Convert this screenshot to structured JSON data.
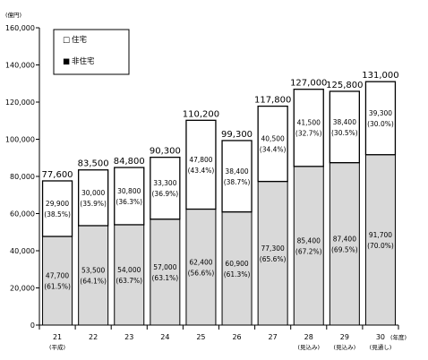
{
  "chart_data": {
    "type": "bar",
    "stacked": true,
    "unit_label": "(億円)",
    "x_unit_label": "(年度)",
    "legend": [
      {
        "name": "住宅",
        "marker": "□",
        "fill": "#ffffff"
      },
      {
        "name": "非住宅",
        "marker": "■",
        "fill": "#d9d9d9"
      }
    ],
    "categories": [
      "21",
      "22",
      "23",
      "24",
      "25",
      "26",
      "27",
      "28",
      "29",
      "30"
    ],
    "category_notes": [
      "(平成)",
      "",
      "",
      "",
      "",
      "",
      "",
      "(見込み)",
      "(見込み)",
      "(見通し)"
    ],
    "series": [
      {
        "name": "非住宅",
        "values": [
          47700,
          53500,
          54000,
          57000,
          62400,
          60900,
          77300,
          85400,
          87400,
          91700
        ],
        "value_labels": [
          "47,700",
          "53,500",
          "54,000",
          "57,000",
          "62,400",
          "60,900",
          "77,300",
          "85,400",
          "87,400",
          "91,700"
        ],
        "pct_labels": [
          "(61.5%)",
          "(64.1%)",
          "(63.7%)",
          "(63.1%)",
          "(56.6%)",
          "(61.3%)",
          "(65.6%)",
          "(67.2%)",
          "(69.5%)",
          "(70.0%)"
        ],
        "color": "#d9d9d9"
      },
      {
        "name": "住宅",
        "values": [
          29900,
          30000,
          30800,
          33300,
          47800,
          38400,
          40500,
          41500,
          38400,
          39300
        ],
        "value_labels": [
          "29,900",
          "30,000",
          "30,800",
          "33,300",
          "47,800",
          "38,400",
          "40,500",
          "41,500",
          "38,400",
          "39,300"
        ],
        "pct_labels": [
          "(38.5%)",
          "(35.9%)",
          "(36.3%)",
          "(36.9%)",
          "(43.4%)",
          "(38.7%)",
          "(34.4%)",
          "(32.7%)",
          "(30.5%)",
          "(30.0%)"
        ],
        "color": "#ffffff"
      }
    ],
    "totals": [
      77600,
      83500,
      84800,
      90300,
      110200,
      99300,
      117800,
      127000,
      125800,
      131000
    ],
    "total_labels": [
      "77,600",
      "83,500",
      "84,800",
      "90,300",
      "110,200",
      "99,300",
      "117,800",
      "127,000",
      "125,800",
      "131,000"
    ],
    "ylim": [
      0,
      160000
    ],
    "y_ticks": [
      0,
      20000,
      40000,
      60000,
      80000,
      100000,
      120000,
      140000,
      160000
    ],
    "y_tick_labels": [
      "0",
      "20,000",
      "40,000",
      "60,000",
      "80,000",
      "100,000",
      "120,000",
      "140,000",
      "160,000"
    ],
    "grid": false,
    "legend_position": "top-left"
  }
}
